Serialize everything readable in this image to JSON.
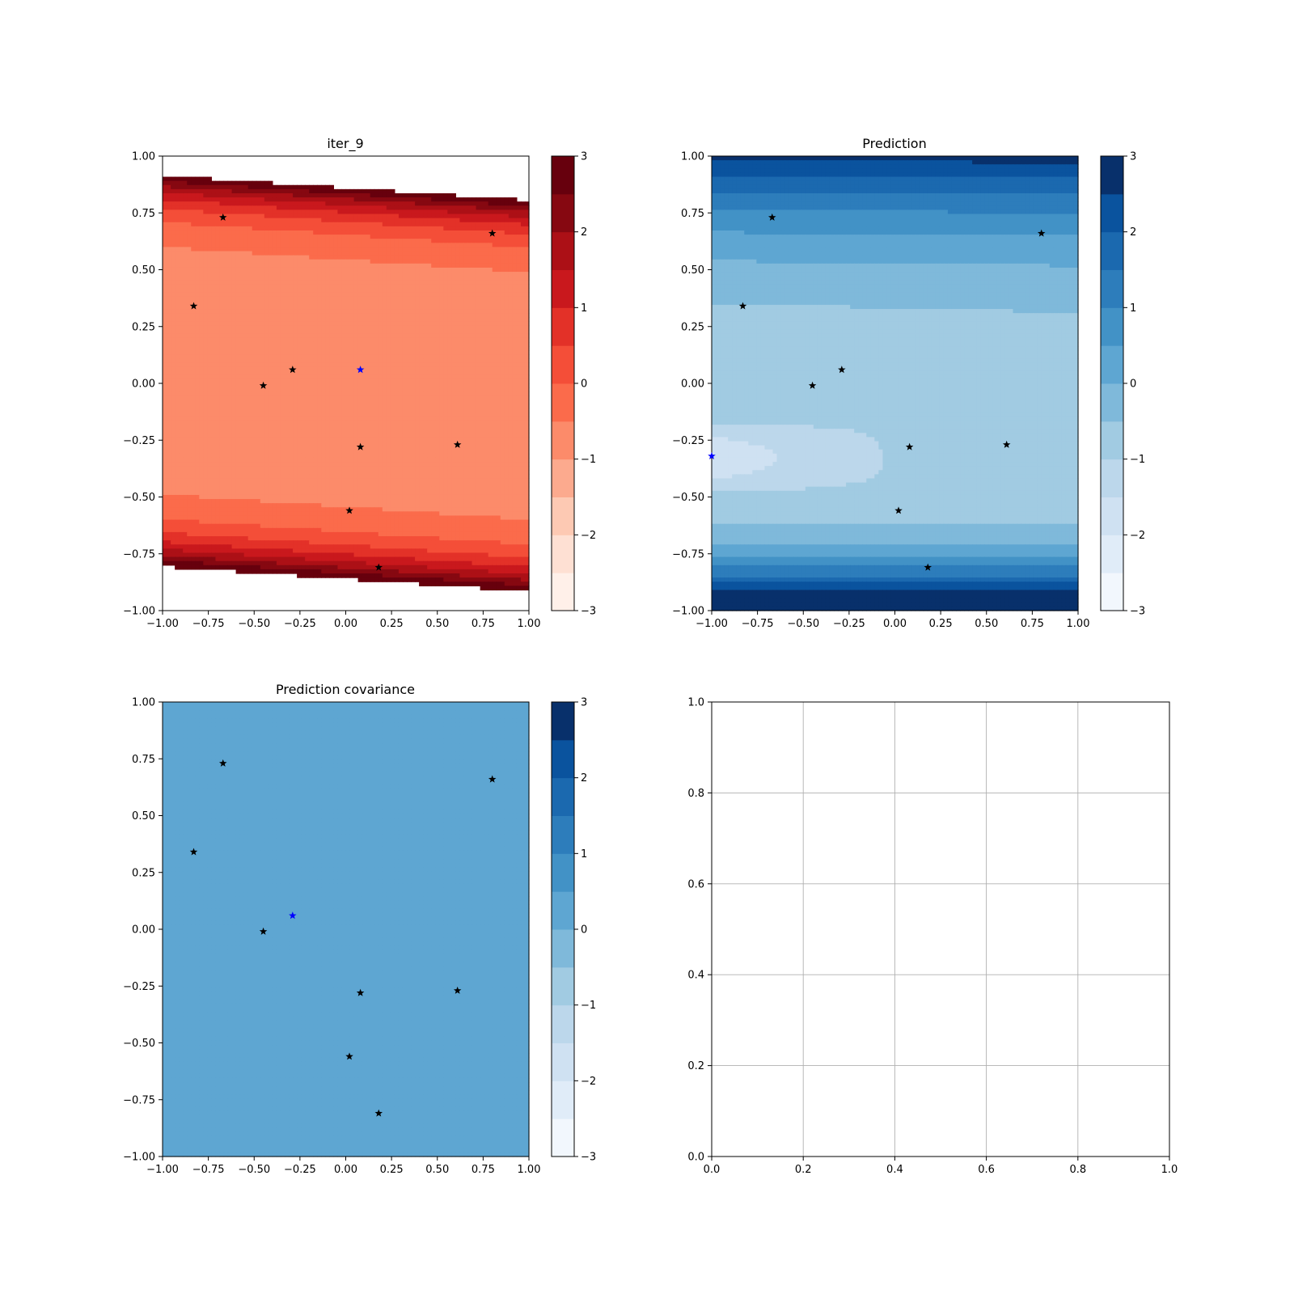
{
  "chart_data": [
    {
      "type": "contour",
      "title": "iter_9",
      "xlim": [
        -1,
        1
      ],
      "ylim": [
        -1,
        1
      ],
      "x_ticks": [
        "−1.00",
        "−0.75",
        "−0.50",
        "−0.25",
        "0.00",
        "0.25",
        "0.50",
        "0.75",
        "1.00"
      ],
      "y_ticks": [
        "−1.00",
        "−0.75",
        "−0.50",
        "−0.25",
        "0.00",
        "0.25",
        "0.50",
        "0.75",
        "1.00"
      ],
      "colormap": "Reds",
      "colorbar": {
        "range": [
          -3,
          3
        ],
        "levels": 13,
        "tick_labels": [
          "−3",
          "−2",
          "−1",
          "0",
          "1",
          "2",
          "3"
        ],
        "colors": [
          "#fff0e9",
          "#fee0d3",
          "#fdc9b3",
          "#fcaa8e",
          "#fc8b6a",
          "#fb6b4b",
          "#f44e38",
          "#e33128",
          "#c9181d",
          "#ac1016",
          "#860811",
          "#67000d"
        ]
      },
      "field_description": "ridge-shaped: high at top and bottom edges, low plateau in middle",
      "points": [
        {
          "x": -0.67,
          "y": 0.73,
          "color": "black"
        },
        {
          "x": 0.8,
          "y": 0.66,
          "color": "black"
        },
        {
          "x": -0.83,
          "y": 0.34,
          "color": "black"
        },
        {
          "x": -0.29,
          "y": 0.06,
          "color": "black"
        },
        {
          "x": 0.08,
          "y": 0.06,
          "color": "blue"
        },
        {
          "x": -0.45,
          "y": -0.01,
          "color": "black"
        },
        {
          "x": 0.08,
          "y": -0.28,
          "color": "black"
        },
        {
          "x": 0.61,
          "y": -0.27,
          "color": "black"
        },
        {
          "x": 0.02,
          "y": -0.56,
          "color": "black"
        },
        {
          "x": 0.18,
          "y": -0.81,
          "color": "black"
        }
      ]
    },
    {
      "type": "contour",
      "title": "Prediction",
      "xlim": [
        -1,
        1
      ],
      "ylim": [
        -1,
        1
      ],
      "x_ticks": [
        "−1.00",
        "−0.75",
        "−0.50",
        "−0.25",
        "0.00",
        "0.25",
        "0.50",
        "0.75",
        "1.00"
      ],
      "y_ticks": [
        "−1.00",
        "−0.75",
        "−0.50",
        "−0.25",
        "0.00",
        "0.25",
        "0.50",
        "0.75",
        "1.00"
      ],
      "colormap": "Blues",
      "colorbar": {
        "range": [
          -3,
          3
        ],
        "levels": 13,
        "tick_labels": [
          "−3",
          "−2",
          "−1",
          "0",
          "1",
          "2",
          "3"
        ],
        "colors": [
          "#f2f7fd",
          "#e0ecf8",
          "#cfe1f2",
          "#bcd7eb",
          "#a1cbe2",
          "#7fb9da",
          "#5ea6d2",
          "#4292c6",
          "#2d7dbb",
          "#1b69af",
          "#0a539e",
          "#08306b"
        ]
      },
      "field_description": "low in middle-left, high at top and especially bottom",
      "points": [
        {
          "x": -0.67,
          "y": 0.73,
          "color": "black"
        },
        {
          "x": 0.8,
          "y": 0.66,
          "color": "black"
        },
        {
          "x": -0.83,
          "y": 0.34,
          "color": "black"
        },
        {
          "x": -0.29,
          "y": 0.06,
          "color": "black"
        },
        {
          "x": -0.45,
          "y": -0.01,
          "color": "black"
        },
        {
          "x": 0.08,
          "y": -0.28,
          "color": "black"
        },
        {
          "x": 0.61,
          "y": -0.27,
          "color": "black"
        },
        {
          "x": 0.02,
          "y": -0.56,
          "color": "black"
        },
        {
          "x": 0.18,
          "y": -0.81,
          "color": "black"
        },
        {
          "x": -1.0,
          "y": -0.32,
          "color": "blue"
        }
      ]
    },
    {
      "type": "contour",
      "title": "Prediction covariance",
      "xlim": [
        -1,
        1
      ],
      "ylim": [
        -1,
        1
      ],
      "x_ticks": [
        "−1.00",
        "−0.75",
        "−0.50",
        "−0.25",
        "0.00",
        "0.25",
        "0.50",
        "0.75",
        "1.00"
      ],
      "y_ticks": [
        "−1.00",
        "−0.75",
        "−0.50",
        "−0.25",
        "0.00",
        "0.25",
        "0.50",
        "0.75",
        "1.00"
      ],
      "colormap": "Blues",
      "colorbar": {
        "range": [
          -3,
          3
        ],
        "levels": 13,
        "tick_labels": [
          "−3",
          "−2",
          "−1",
          "0",
          "1",
          "2",
          "3"
        ],
        "colors": [
          "#f2f7fd",
          "#e0ecf8",
          "#cfe1f2",
          "#bcd7eb",
          "#a1cbe2",
          "#7fb9da",
          "#5ea6d2",
          "#4292c6",
          "#2d7dbb",
          "#1b69af",
          "#0a539e",
          "#08306b"
        ]
      },
      "field_description": "nearly uniform, slightly higher band at the top",
      "points": [
        {
          "x": -0.67,
          "y": 0.73,
          "color": "black"
        },
        {
          "x": 0.8,
          "y": 0.66,
          "color": "black"
        },
        {
          "x": -0.83,
          "y": 0.34,
          "color": "black"
        },
        {
          "x": -0.29,
          "y": 0.06,
          "color": "blue"
        },
        {
          "x": -0.45,
          "y": -0.01,
          "color": "black"
        },
        {
          "x": 0.08,
          "y": -0.28,
          "color": "black"
        },
        {
          "x": 0.61,
          "y": -0.27,
          "color": "black"
        },
        {
          "x": 0.02,
          "y": -0.56,
          "color": "black"
        },
        {
          "x": 0.18,
          "y": -0.81,
          "color": "black"
        }
      ]
    },
    {
      "type": "empty",
      "title": "",
      "xlim": [
        0,
        1
      ],
      "ylim": [
        0,
        1
      ],
      "grid": true,
      "x_ticks": [
        "0.0",
        "0.2",
        "0.4",
        "0.6",
        "0.8",
        "1.0"
      ],
      "y_ticks": [
        "0.0",
        "0.2",
        "0.4",
        "0.6",
        "0.8",
        "1.0"
      ]
    }
  ]
}
